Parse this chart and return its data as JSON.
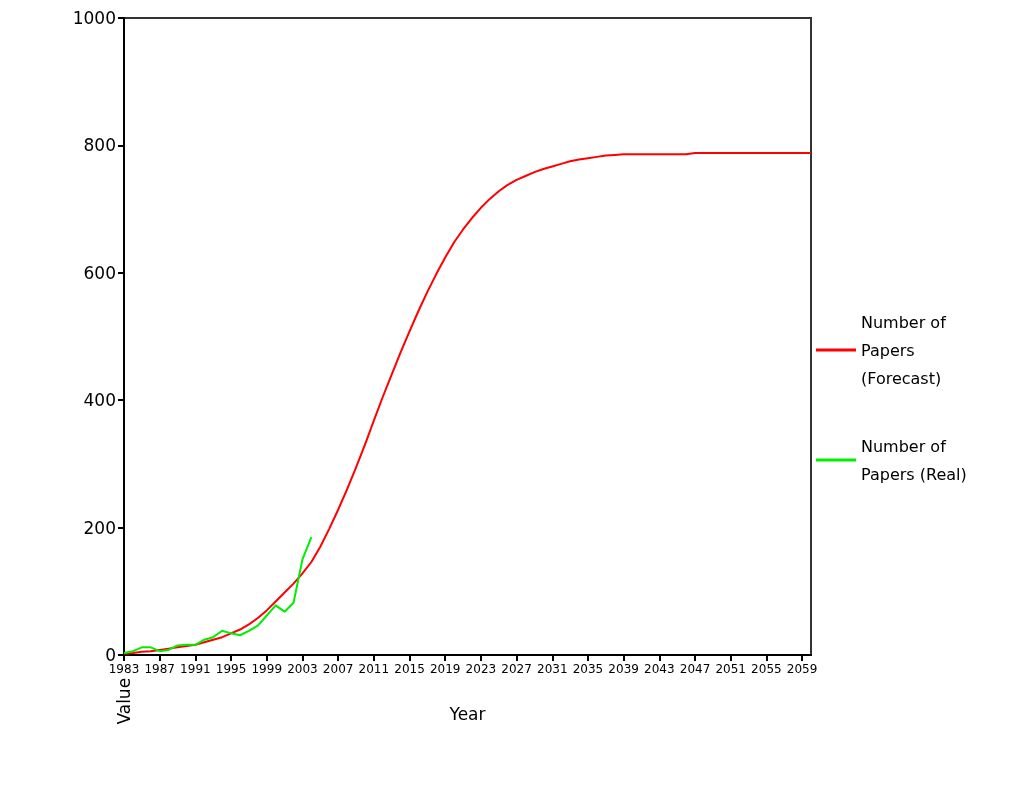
{
  "chart_data": {
    "type": "line",
    "xlabel": "Year",
    "ylabel": "Value",
    "x": [
      1983,
      1984,
      1985,
      1986,
      1987,
      1988,
      1989,
      1990,
      1991,
      1992,
      1993,
      1994,
      1995,
      1996,
      1997,
      1998,
      1999,
      2000,
      2001,
      2002,
      2003,
      2004,
      2005,
      2006,
      2007,
      2008,
      2009,
      2010,
      2011,
      2012,
      2013,
      2014,
      2015,
      2016,
      2017,
      2018,
      2019,
      2020,
      2021,
      2022,
      2023,
      2024,
      2025,
      2026,
      2027,
      2028,
      2029,
      2030,
      2031,
      2032,
      2033,
      2034,
      2035,
      2036,
      2037,
      2038,
      2039,
      2040,
      2041,
      2042,
      2043,
      2044,
      2045,
      2046,
      2047,
      2048,
      2049,
      2050,
      2051,
      2052,
      2053,
      2054,
      2055,
      2056,
      2057,
      2058,
      2059,
      2060
    ],
    "series": [
      {
        "name": "Number of Papers (Forecast)",
        "color": "#ff0000",
        "values": [
          2,
          3,
          5,
          6,
          8,
          10,
          12,
          14,
          16,
          20,
          24,
          28,
          34,
          40,
          48,
          58,
          70,
          84,
          98,
          112,
          128,
          146,
          170,
          198,
          228,
          260,
          294,
          330,
          368,
          405,
          440,
          475,
          508,
          540,
          570,
          598,
          624,
          648,
          668,
          686,
          702,
          716,
          728,
          738,
          746,
          752,
          758,
          763,
          767,
          771,
          775,
          778,
          780,
          782,
          784,
          785,
          786,
          786,
          786,
          786,
          786,
          786,
          786,
          786,
          788,
          788,
          788,
          788,
          788,
          788,
          788,
          788,
          788,
          788,
          788,
          788,
          788,
          788
        ]
      },
      {
        "name": "Number of Papers (Real)",
        "color": "#00ee00",
        "x": [
          1983,
          1984,
          1985,
          1986,
          1987,
          1988,
          1989,
          1990,
          1991,
          1992,
          1993,
          1994,
          1995,
          1996,
          1997,
          1998,
          1999,
          2000,
          2001,
          2002,
          2003,
          2004
        ],
        "values": [
          3,
          6,
          12,
          12,
          6,
          8,
          15,
          16,
          16,
          24,
          28,
          38,
          34,
          31,
          38,
          46,
          62,
          78,
          68,
          82,
          150,
          185
        ]
      }
    ],
    "xlim": [
      1983,
      2060
    ],
    "xticks": [
      1983,
      1987,
      1991,
      1995,
      1999,
      2003,
      2007,
      2011,
      2015,
      2019,
      2023,
      2027,
      2031,
      2035,
      2039,
      2043,
      2047,
      2051,
      2055,
      2059
    ],
    "ylim": [
      0,
      1000
    ],
    "yticks": [
      0,
      200,
      400,
      600,
      800,
      1000
    ],
    "grid": false,
    "legend": "right",
    "marker": "none",
    "line_style": "solid"
  }
}
